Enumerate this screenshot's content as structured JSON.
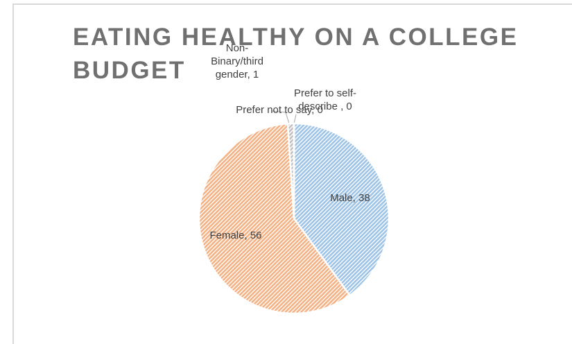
{
  "chart_data": {
    "type": "pie",
    "title": "EATING HEALTHY ON A COLLEGE BUDGET",
    "categories": [
      "Male",
      "Female",
      "Non-Binary/third gender",
      "Prefer not to say",
      "Prefer to self-describe "
    ],
    "values": [
      38,
      56,
      1,
      0,
      0
    ],
    "value_labels": [
      "Male, 38",
      "Female, 56",
      "Non-Binary/third gender, 1",
      "Prefer not to say, 0",
      "Prefer to self-describe , 0"
    ],
    "colors": [
      "#9dc3e6",
      "#f4b183",
      "#bfbfbf",
      "#ffd966",
      "#8faadc"
    ]
  }
}
